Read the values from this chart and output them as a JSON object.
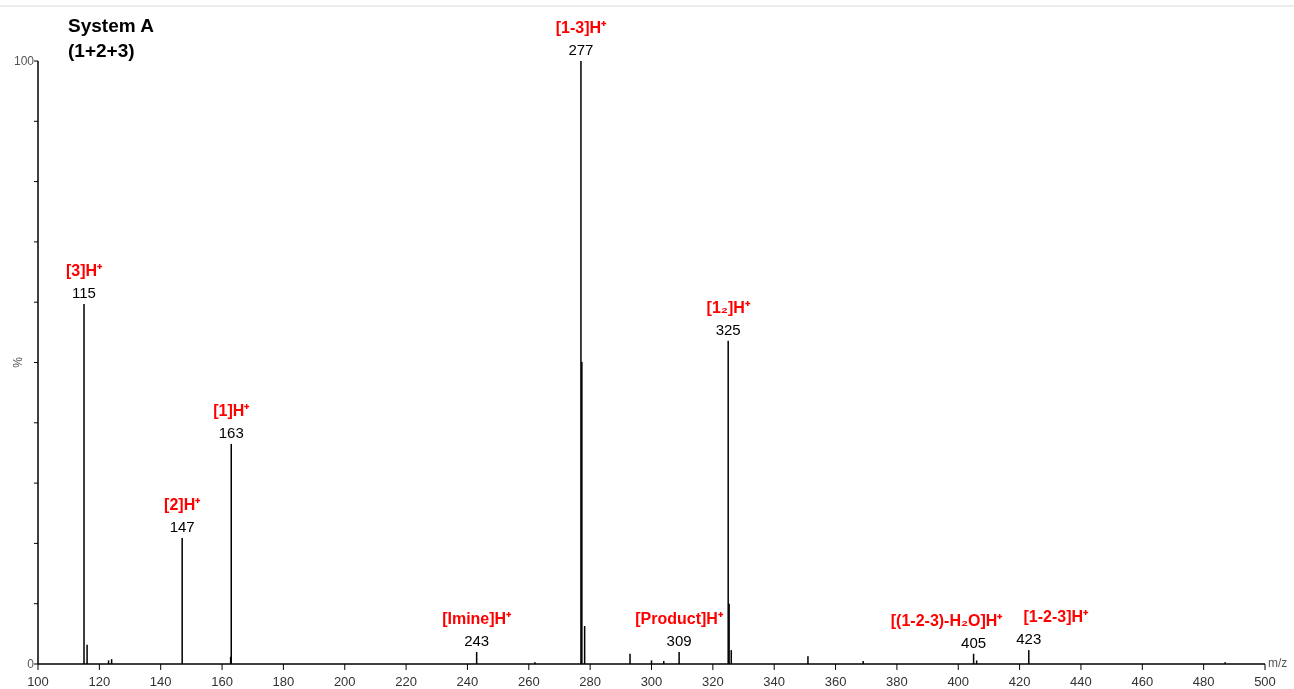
{
  "chart_data": {
    "type": "bar",
    "title": "System A\n(1+2+3)",
    "xlabel": "m/z",
    "ylabel": "%",
    "x": [
      115,
      116,
      123,
      124,
      147,
      162.8,
      163,
      243,
      262,
      277,
      277.3,
      278.2,
      293,
      300,
      304,
      309,
      325,
      325.3,
      326,
      351,
      369,
      405,
      406,
      423,
      487
    ],
    "series": [
      {
        "color": "#000000",
        "values": [
          59.7,
          3.2,
          0.6,
          0.8,
          20.9,
          1.2,
          36.5,
          2.0,
          0.3,
          100,
          50.1,
          6.3,
          1.7,
          0.6,
          0.5,
          2.0,
          53.6,
          10,
          2.3,
          1.3,
          0.5,
          1.7,
          0.6,
          2.3,
          0.3
        ]
      }
    ],
    "xlim": [
      100,
      500
    ],
    "xticks": [
      100,
      120,
      140,
      160,
      180,
      200,
      220,
      240,
      260,
      280,
      300,
      320,
      340,
      360,
      380,
      400,
      420,
      440,
      460,
      480,
      500
    ],
    "ylim": [
      0,
      100
    ],
    "yticks": [
      0,
      {
        "value": 10,
        "label": null
      },
      {
        "value": 20,
        "label": null
      },
      {
        "value": 30,
        "label": null
      },
      {
        "value": 40,
        "label": null
      },
      {
        "value": 50,
        "label": null
      },
      {
        "value": 60,
        "label": null
      },
      {
        "value": 70,
        "label": null
      },
      {
        "value": 80,
        "label": null
      },
      {
        "value": 90,
        "label": null
      },
      100
    ],
    "grid": false,
    "annotations": [
      {
        "text": "115",
        "x": 115,
        "y": 59.7
      },
      {
        "text": "[3]H⁺",
        "x": 115,
        "y": 59.7
      },
      {
        "text": "147",
        "x": 147,
        "y": 20.9
      },
      {
        "text": "[2]H⁺",
        "x": 147,
        "y": 20.9
      },
      {
        "text": "163",
        "x": 163,
        "y": 36.5
      },
      {
        "text": "[1]H⁺",
        "x": 163,
        "y": 36.5
      },
      {
        "text": "243",
        "x": 243,
        "y": 2.0
      },
      {
        "text": "[Imine]H⁺",
        "x": 243,
        "y": 2.0
      },
      {
        "text": "277",
        "x": 277,
        "y": 100
      },
      {
        "text": "[1-3]H⁺",
        "x": 277,
        "y": 100
      },
      {
        "text": "309",
        "x": 309,
        "y": 2.0
      },
      {
        "text": "[Product]H⁺",
        "x": 309,
        "y": 2.0
      },
      {
        "text": "325",
        "x": 325,
        "y": 53.6
      },
      {
        "text": "[1₂]H⁺",
        "x": 325,
        "y": 53.6
      },
      {
        "text": "405",
        "x": 405,
        "y": 1.7
      },
      {
        "text": "[(1-2-3)-H₂O]H⁺",
        "x": 405,
        "y": 1.7
      },
      {
        "text": "423",
        "x": 423,
        "y": 2.3
      },
      {
        "text": "[1-2-3]H⁺",
        "x": 423,
        "y": 2.3
      }
    ]
  }
}
